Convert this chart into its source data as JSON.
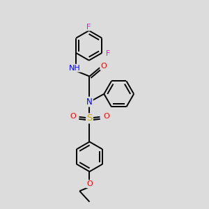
{
  "background_color": "#dcdcdc",
  "atom_colors": {
    "F": "#ff00cc",
    "O": "#ff0000",
    "N": "#0000ff",
    "S": "#ccaa00",
    "C": "#000000",
    "H": "#000000"
  },
  "bond_color": "#000000",
  "figsize": [
    3.0,
    3.0
  ],
  "dpi": 100,
  "lw": 1.4,
  "r_hex": 0.72,
  "font_size": 7.5
}
